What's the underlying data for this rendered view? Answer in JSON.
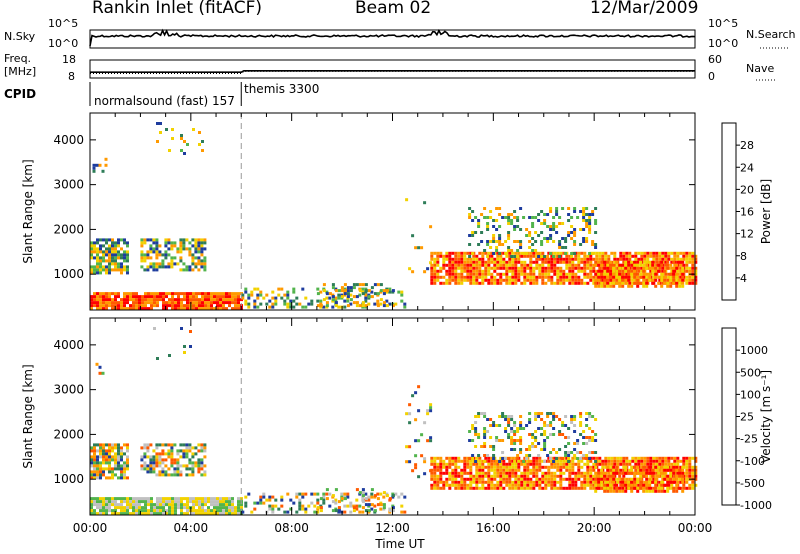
{
  "header": {
    "station": "Rankin Inlet (fitACF)",
    "beam": "Beam 02",
    "date": "12/Mar/2009"
  },
  "left_labels": {
    "nsky": "N.Sky",
    "freq": "Freq.",
    "freq_unit": "[MHz]",
    "cpid": "CPID"
  },
  "right_labels": {
    "nsearch": "N.Search",
    "nave": "Nave"
  },
  "cpid_segments": [
    {
      "label": "normalsound (fast) 157",
      "start_hour": 0,
      "end_hour": 6
    },
    {
      "label": "themis 3300",
      "start_hour": 6,
      "end_hour": 24
    }
  ],
  "colors": {
    "power": [
      "#0000ff",
      "#1e3c9e",
      "#2e7d58",
      "#52b44c",
      "#f2d200",
      "#ff9a00",
      "#ff5a00",
      "#ff0000"
    ],
    "velocity": [
      "#ff0000",
      "#ff5a00",
      "#ff9a00",
      "#f2d200",
      "#c0c0c0",
      "#52b44c",
      "#2e7d58",
      "#1e3c9e"
    ]
  },
  "chart_data": [
    {
      "type": "line",
      "name": "noise",
      "yticks": [
        "10^5",
        "10^0"
      ],
      "y2ticks": [
        "10^5",
        "10^0"
      ],
      "ylabel_left": "N.Sky",
      "ylabel_right": "N.Search"
    },
    {
      "type": "line",
      "name": "frequency",
      "yticks": [
        "18",
        "8"
      ],
      "y2ticks": [
        "60",
        "0"
      ],
      "freq_mhz": [
        [
          0,
          11.2
        ],
        [
          6,
          11.2
        ],
        [
          6.1,
          12.0
        ],
        [
          24,
          12.0
        ]
      ],
      "nave": [
        [
          0,
          15
        ],
        [
          6,
          15
        ],
        [
          6.1,
          22
        ],
        [
          24,
          22
        ]
      ]
    },
    {
      "type": "heatmap",
      "name": "power",
      "ylabel": "Slant Range [km]",
      "xlim": [
        0,
        24
      ],
      "ylim": [
        200,
        4600
      ],
      "yticks": [
        "1000",
        "2000",
        "3000",
        "4000"
      ],
      "colorbar_label": "Power [dB]",
      "colorbar_ticks": [
        "4",
        "8",
        "12",
        "16",
        "20",
        "24",
        "28"
      ]
    },
    {
      "type": "heatmap",
      "name": "velocity",
      "ylabel": "Slant Range [km]",
      "xlabel": "Time UT",
      "xlim": [
        0,
        24
      ],
      "ylim": [
        200,
        4600
      ],
      "xticks": [
        "00:00",
        "04:00",
        "08:00",
        "12:00",
        "16:00",
        "20:00",
        "00:00"
      ],
      "yticks": [
        "1000",
        "2000",
        "3000",
        "4000"
      ],
      "colorbar_label": "Velocity [m s⁻¹]",
      "colorbar_ticks": [
        "1000",
        "500",
        "100",
        "25",
        "-25",
        "-100",
        "-500",
        "-1000"
      ]
    }
  ]
}
